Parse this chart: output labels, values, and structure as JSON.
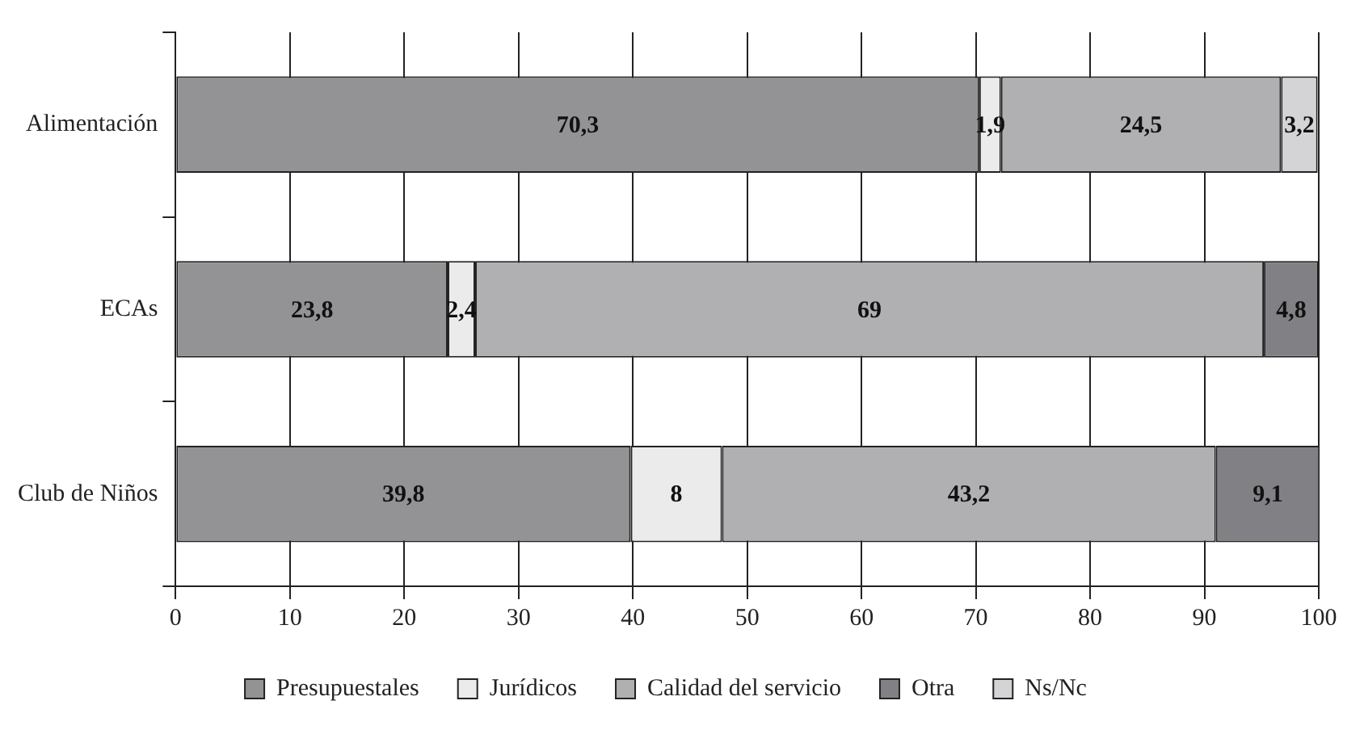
{
  "chart_data": {
    "type": "bar",
    "orientation": "horizontal",
    "stacked": true,
    "categories": [
      "Alimentación",
      "ECAs",
      "Club de Niños"
    ],
    "series": [
      {
        "name": "Presupuestales",
        "color": "#939396",
        "values": [
          70.3,
          23.8,
          39.8
        ],
        "value_labels": [
          "70,3",
          "23,8",
          "39,8"
        ]
      },
      {
        "name": "Jurídicos",
        "color": "#ebebeb",
        "values": [
          1.9,
          2.4,
          8
        ],
        "value_labels": [
          "1,9",
          "2,4",
          "8"
        ]
      },
      {
        "name": "Calidad del servicio",
        "color": "#b0b0b3",
        "values": [
          24.5,
          69,
          43.2
        ],
        "value_labels": [
          "24,5",
          "69",
          "43,2"
        ]
      },
      {
        "name": "Otra",
        "color": "#818185",
        "values": [
          null,
          4.8,
          9.1
        ],
        "value_labels": [
          null,
          "4,8",
          "9,1"
        ]
      },
      {
        "name": "Ns/Nc",
        "color": "#d4d4d6",
        "values": [
          3.2,
          null,
          null
        ],
        "value_labels": [
          "3,2",
          null,
          null
        ]
      }
    ],
    "xlim": [
      0,
      100
    ],
    "xticks": [
      0,
      10,
      20,
      30,
      40,
      50,
      60,
      70,
      80,
      90,
      100
    ],
    "grid": "x",
    "legend": "bottom"
  }
}
